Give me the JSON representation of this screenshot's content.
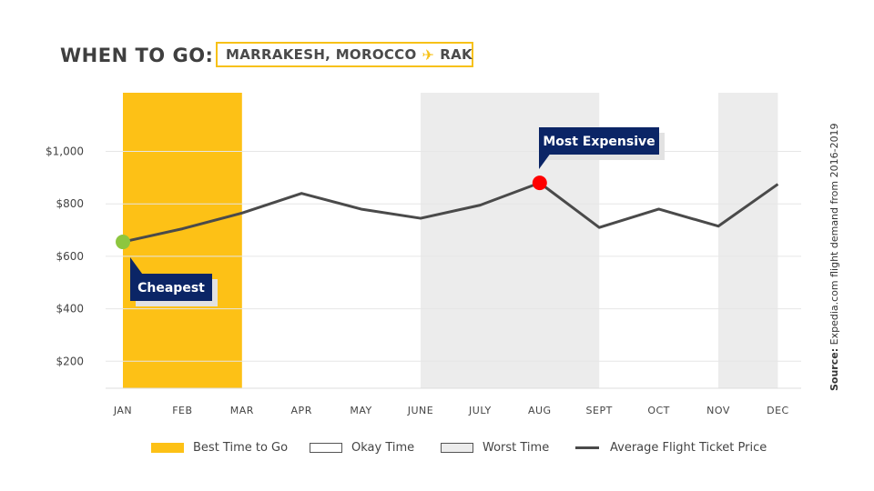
{
  "header": {
    "title": "WHEN TO GO:",
    "destination": "MARRAKESH, MOROCCO",
    "plane_icon": "airplane-icon",
    "airport_code": "RAK"
  },
  "source": {
    "label": "Source:",
    "text": "Expedia.com flight demand from 2016-2019"
  },
  "legend": {
    "best": "Best Time to Go",
    "okay": "Okay Time",
    "worst": "Worst Time",
    "line": "Average Flight Ticket Price"
  },
  "colors": {
    "best": "#fdc116",
    "worst": "#ececec",
    "line": "#4a4a4a",
    "callout": "#0b2566",
    "cheapest_marker": "#8dc63f",
    "expensive_marker": "#ff0000"
  },
  "chart_data": {
    "type": "line",
    "title": "",
    "xlabel": "",
    "ylabel": "",
    "categories": [
      "JAN",
      "FEB",
      "MAR",
      "APR",
      "MAY",
      "JUNE",
      "JULY",
      "AUG",
      "SEPT",
      "OCT",
      "NOV",
      "DEC"
    ],
    "series": [
      {
        "name": "Average Flight Ticket Price",
        "values": [
          655,
          705,
          765,
          840,
          780,
          745,
          795,
          880,
          710,
          780,
          715,
          875
        ]
      }
    ],
    "ylim": [
      100,
      1200
    ],
    "yticks": [
      200,
      400,
      600,
      800,
      1000
    ],
    "ytick_labels": [
      "$200",
      "$400",
      "$600",
      "$800",
      "$1,000"
    ],
    "grid": true,
    "periods": [
      {
        "type": "best",
        "from": "JAN",
        "to": "MAR"
      },
      {
        "type": "worst",
        "from": "JUNE",
        "to": "SEPT"
      },
      {
        "type": "worst",
        "from": "NOV",
        "to": "DEC"
      }
    ],
    "annotations": [
      {
        "label": "Cheapest",
        "month": "JAN",
        "value": 655
      },
      {
        "label": "Most Expensive",
        "month": "AUG",
        "value": 880
      }
    ]
  }
}
